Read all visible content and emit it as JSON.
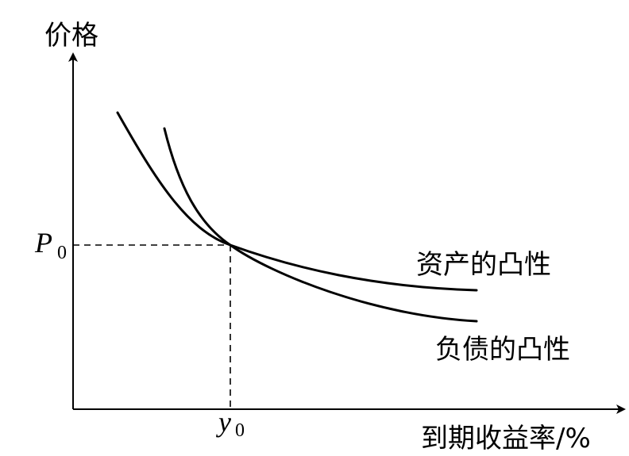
{
  "diagram": {
    "y_axis_label": "价格",
    "x_axis_label": "到期收益率/%",
    "p0": {
      "letter": "P",
      "subscript": "0"
    },
    "y0": {
      "letter": "y",
      "subscript": "0"
    },
    "curve_asset_label": "资产的凸性",
    "curve_liability_label": "负债的凸性"
  }
}
